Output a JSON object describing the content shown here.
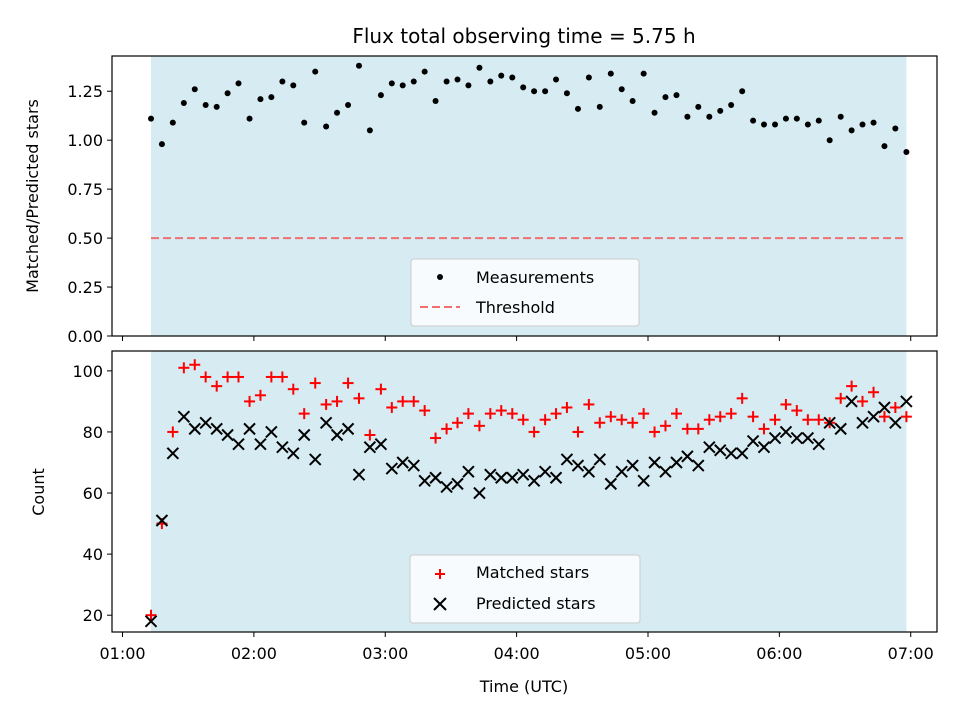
{
  "chart_data": [
    {
      "type": "scatter",
      "title": "Flux total observing time = 5.75 h",
      "xlabel": "",
      "ylabel": "Matched/Predicted stars",
      "xlim": [
        -0.08,
        6.2
      ],
      "ylim": [
        0,
        1.43
      ],
      "x_unit": "hours since 01:00 UTC",
      "observing_window": [
        0.2167,
        5.9667
      ],
      "yticks": [
        "0.00",
        "0.25",
        "0.50",
        "0.75",
        "1.00",
        "1.25"
      ],
      "threshold": 0.5,
      "legend_position": "lower center",
      "series": [
        {
          "name": "Measurements",
          "marker": "dot",
          "color": "#000000",
          "x": [
            0.217,
            0.3,
            0.383,
            0.467,
            0.55,
            0.633,
            0.717,
            0.8,
            0.883,
            0.967,
            1.05,
            1.133,
            1.217,
            1.3,
            1.383,
            1.467,
            1.55,
            1.633,
            1.717,
            1.8,
            1.883,
            1.967,
            2.05,
            2.133,
            2.217,
            2.3,
            2.383,
            2.467,
            2.55,
            2.633,
            2.717,
            2.8,
            2.883,
            2.967,
            3.05,
            3.133,
            3.217,
            3.3,
            3.383,
            3.467,
            3.55,
            3.633,
            3.717,
            3.8,
            3.883,
            3.967,
            4.05,
            4.133,
            4.217,
            4.3,
            4.383,
            4.467,
            4.55,
            4.633,
            4.717,
            4.8,
            4.883,
            4.967,
            5.05,
            5.133,
            5.217,
            5.3,
            5.383,
            5.467,
            5.55,
            5.633,
            5.717,
            5.8,
            5.883,
            5.967
          ],
          "y": [
            1.11,
            0.98,
            1.09,
            1.19,
            1.26,
            1.18,
            1.17,
            1.24,
            1.29,
            1.11,
            1.21,
            1.22,
            1.3,
            1.28,
            1.09,
            1.35,
            1.07,
            1.14,
            1.18,
            1.38,
            1.05,
            1.23,
            1.29,
            1.28,
            1.3,
            1.35,
            1.2,
            1.3,
            1.31,
            1.28,
            1.37,
            1.3,
            1.33,
            1.32,
            1.27,
            1.25,
            1.25,
            1.31,
            1.24,
            1.16,
            1.32,
            1.17,
            1.34,
            1.26,
            1.2,
            1.34,
            1.14,
            1.22,
            1.23,
            1.12,
            1.17,
            1.12,
            1.15,
            1.18,
            1.25,
            1.1,
            1.08,
            1.08,
            1.11,
            1.11,
            1.08,
            1.1,
            1.0,
            1.12,
            1.05,
            1.08,
            1.09,
            0.97,
            1.06,
            0.94
          ]
        },
        {
          "name": "Threshold",
          "style": "dashed",
          "color": "#f07070",
          "x": [
            0.217,
            5.967
          ],
          "y": [
            0.5,
            0.5
          ]
        }
      ]
    },
    {
      "type": "scatter",
      "title": "",
      "xlabel": "Time (UTC)",
      "ylabel": "Count",
      "xlim": [
        -0.08,
        6.2
      ],
      "ylim": [
        14.5,
        106.5
      ],
      "x_unit": "hours since 01:00 UTC",
      "observing_window": [
        0.2167,
        5.9667
      ],
      "yticks": [
        "20",
        "40",
        "60",
        "80",
        "100"
      ],
      "xticks": [
        "01:00",
        "02:00",
        "03:00",
        "04:00",
        "05:00",
        "06:00",
        "07:00"
      ],
      "legend_position": "lower center",
      "series": [
        {
          "name": "Matched stars",
          "marker": "plus",
          "color": "#ff0000",
          "x": [
            0.217,
            0.3,
            0.383,
            0.467,
            0.55,
            0.633,
            0.717,
            0.8,
            0.883,
            0.967,
            1.05,
            1.133,
            1.217,
            1.3,
            1.383,
            1.467,
            1.55,
            1.633,
            1.717,
            1.8,
            1.883,
            1.967,
            2.05,
            2.133,
            2.217,
            2.3,
            2.383,
            2.467,
            2.55,
            2.633,
            2.717,
            2.8,
            2.883,
            2.967,
            3.05,
            3.133,
            3.217,
            3.3,
            3.383,
            3.467,
            3.55,
            3.633,
            3.717,
            3.8,
            3.883,
            3.967,
            4.05,
            4.133,
            4.217,
            4.3,
            4.383,
            4.467,
            4.55,
            4.633,
            4.717,
            4.8,
            4.883,
            4.967,
            5.05,
            5.133,
            5.217,
            5.3,
            5.383,
            5.467,
            5.55,
            5.633,
            5.717,
            5.8,
            5.883,
            5.967
          ],
          "y": [
            20,
            50,
            80,
            101,
            102,
            98,
            95,
            98,
            98,
            90,
            92,
            98,
            98,
            94,
            86,
            96,
            89,
            90,
            96,
            91,
            79,
            94,
            88,
            90,
            90,
            87,
            78,
            81,
            83,
            86,
            82,
            86,
            87,
            86,
            84,
            80,
            84,
            86,
            88,
            80,
            89,
            83,
            85,
            84,
            83,
            86,
            80,
            82,
            86,
            81,
            81,
            84,
            85,
            86,
            91,
            85,
            81,
            84,
            89,
            87,
            84,
            84,
            83,
            91,
            95,
            90,
            93,
            85,
            88,
            85
          ]
        },
        {
          "name": "Predicted stars",
          "marker": "x",
          "color": "#000000",
          "x": [
            0.217,
            0.3,
            0.383,
            0.467,
            0.55,
            0.633,
            0.717,
            0.8,
            0.883,
            0.967,
            1.05,
            1.133,
            1.217,
            1.3,
            1.383,
            1.467,
            1.55,
            1.633,
            1.717,
            1.8,
            1.883,
            1.967,
            2.05,
            2.133,
            2.217,
            2.3,
            2.383,
            2.467,
            2.55,
            2.633,
            2.717,
            2.8,
            2.883,
            2.967,
            3.05,
            3.133,
            3.217,
            3.3,
            3.383,
            3.467,
            3.55,
            3.633,
            3.717,
            3.8,
            3.883,
            3.967,
            4.05,
            4.133,
            4.217,
            4.3,
            4.383,
            4.467,
            4.55,
            4.633,
            4.717,
            4.8,
            4.883,
            4.967,
            5.05,
            5.133,
            5.217,
            5.3,
            5.383,
            5.467,
            5.55,
            5.633,
            5.717,
            5.8,
            5.883,
            5.967
          ],
          "y": [
            18,
            51,
            73,
            85,
            81,
            83,
            81,
            79,
            76,
            81,
            76,
            80,
            75,
            73,
            79,
            71,
            83,
            79,
            81,
            66,
            75,
            76,
            68,
            70,
            69,
            64,
            65,
            62,
            63,
            67,
            60,
            66,
            65,
            65,
            66,
            64,
            67,
            65,
            71,
            69,
            67,
            71,
            63,
            67,
            69,
            64,
            70,
            67,
            70,
            72,
            69,
            75,
            74,
            73,
            73,
            77,
            75,
            78,
            80,
            78,
            78,
            76,
            83,
            81,
            90,
            83,
            85,
            88,
            83,
            90
          ]
        }
      ]
    }
  ]
}
